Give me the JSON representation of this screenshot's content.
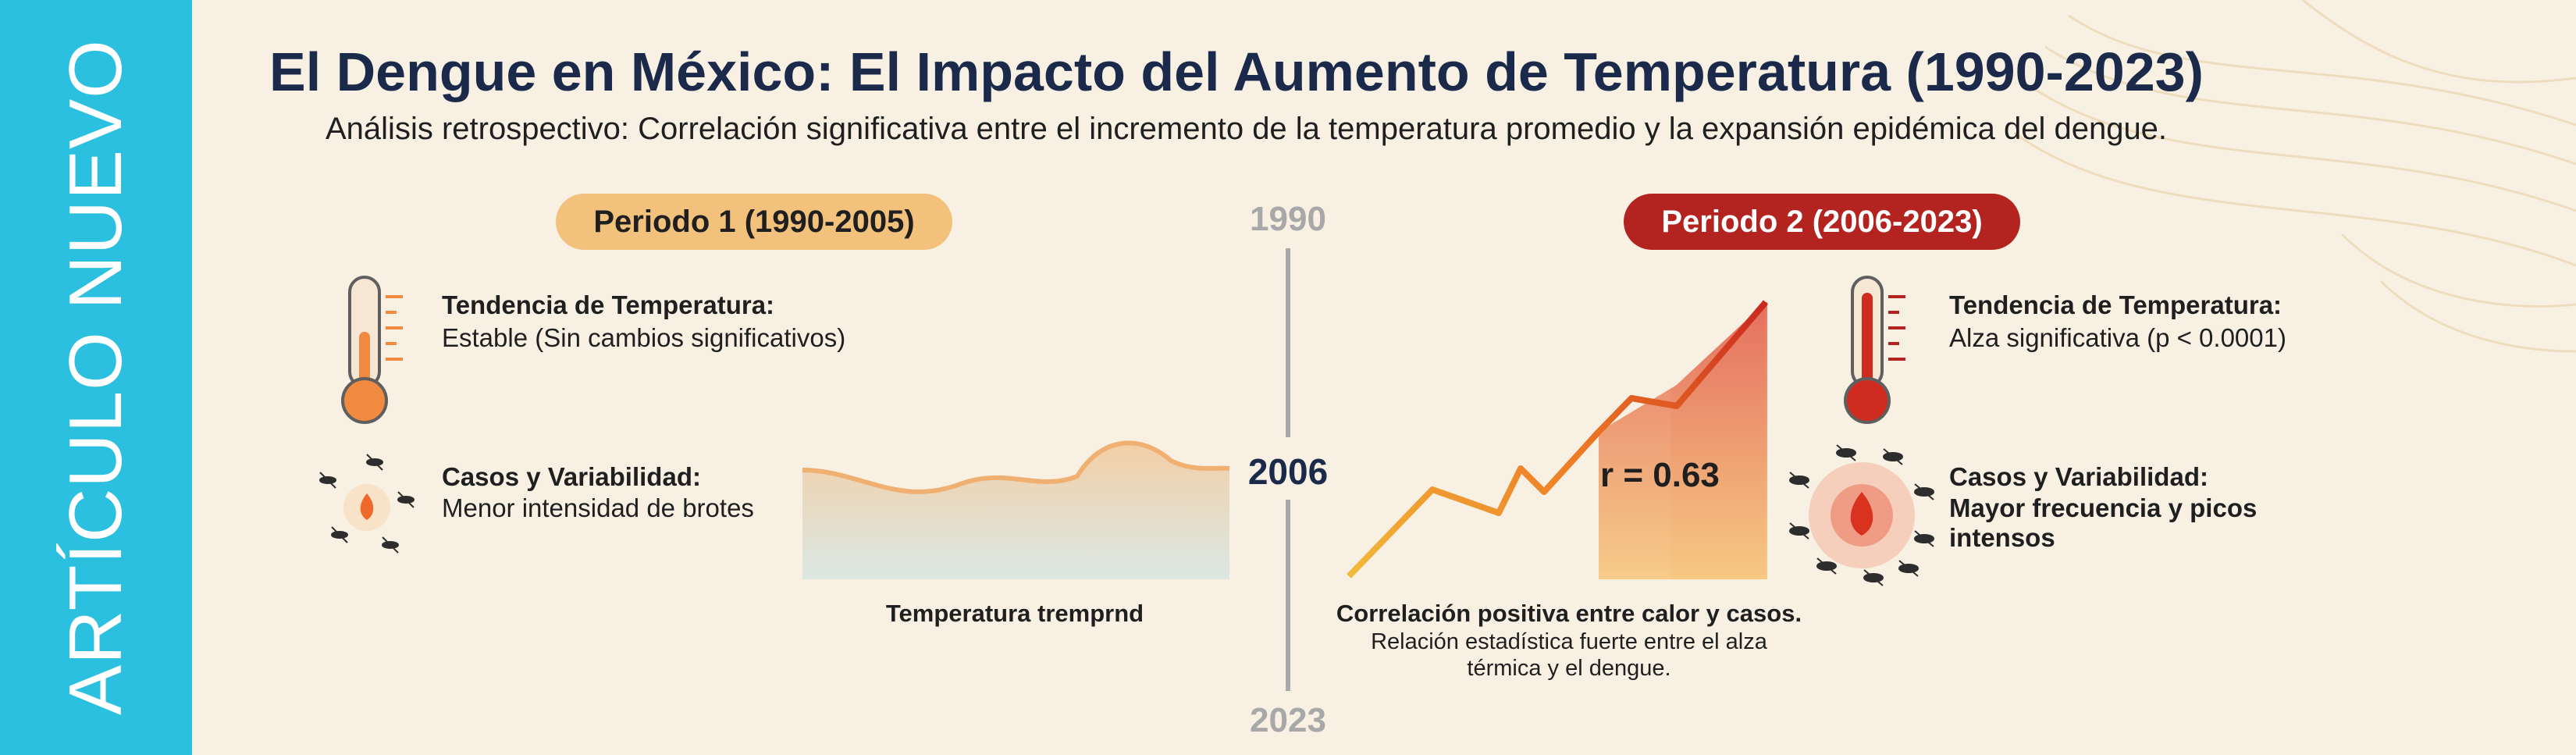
{
  "side_banner": {
    "label": "ARTÍCULO NUEVO",
    "color": "#2bbfe0"
  },
  "header": {
    "title": "El Dengue en México: El Impacto del Aumento de Temperatura (1990-2023)",
    "subtitle": "Análisis retrospectivo: Correlación significativa entre el incremento de la temperatura promedio y la expansión epidémica del dengue."
  },
  "timeline": {
    "years": {
      "start": "1990",
      "middle": "2006",
      "end": "2023"
    }
  },
  "period1": {
    "pill_label": "Periodo 1 (1990-2005)",
    "pill_color": "#f2c27d",
    "temp_title": "Tendencia de Temperatura:",
    "temp_desc": "Estable (Sin cambios significativos)",
    "cases_title": "Casos y Variabilidad:",
    "cases_desc": "Menor intensidad de brotes",
    "chart_caption": "Temperatura tremprnd",
    "icons": [
      "thermometer-icon",
      "mosquito-cluster-icon"
    ]
  },
  "period2": {
    "pill_label": "Periodo 2 (2006-2023)",
    "pill_color": "#b3231f",
    "temp_title": "Tendencia de Temperatura:",
    "temp_desc": "Alza significativa (p < 0.0001)",
    "cases_title": "Casos y Variabilidad:",
    "cases_desc_line1": "Mayor frecuencia y picos",
    "cases_desc_line2": "intensos",
    "correlation_label": "r = 0.63",
    "caption_title": "Correlación positiva entre calor y casos.",
    "caption_line1": "Relación estadística fuerte entre el alza",
    "caption_line2": "térmica y el dengue.",
    "icons": [
      "thermometer-icon",
      "mosquito-cluster-icon"
    ]
  }
}
